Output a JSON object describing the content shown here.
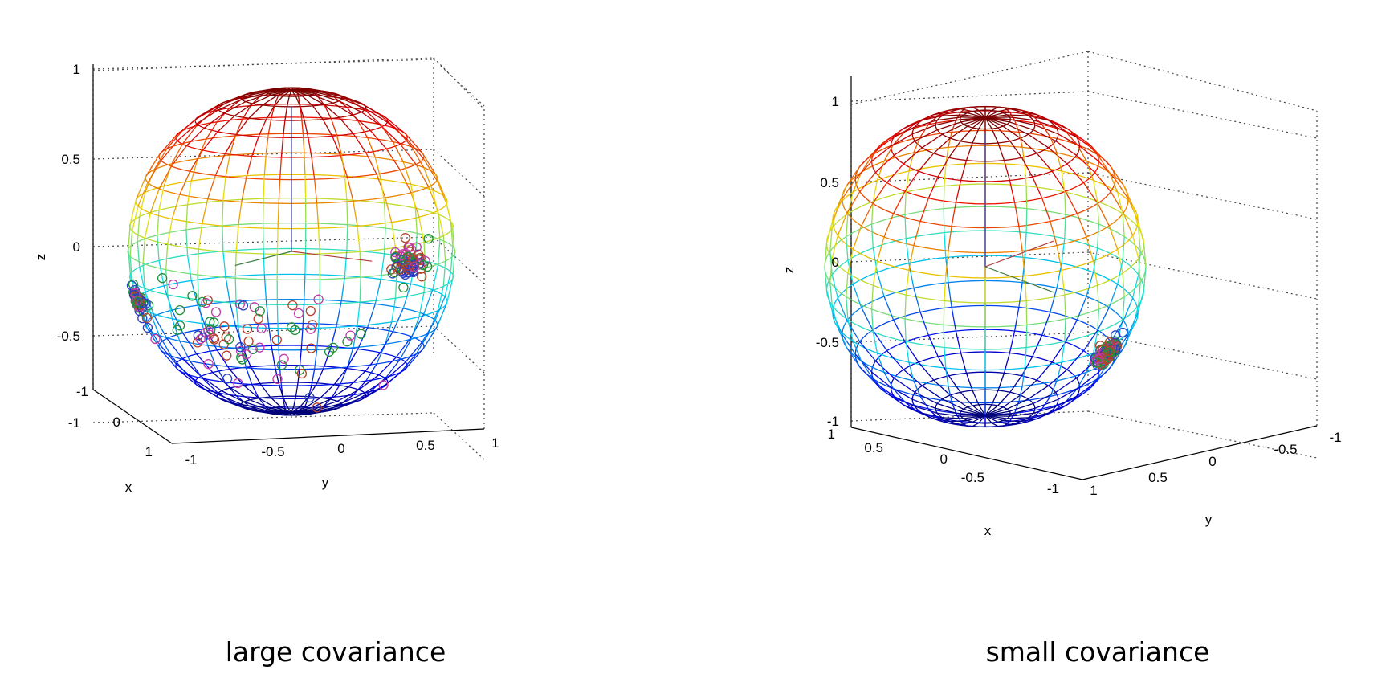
{
  "figure": {
    "captions": [
      "large covariance",
      "small covariance"
    ]
  },
  "chart_data": [
    {
      "type": "scatter",
      "title": "",
      "xlabel": "x",
      "ylabel": "y",
      "zlabel": "z",
      "xlim": [
        -1,
        1
      ],
      "ylim": [
        -1,
        1
      ],
      "zlim": [
        -1,
        1
      ],
      "x_ticks": [
        "-1",
        "0",
        "1"
      ],
      "y_ticks": [
        "-1",
        "-0.5",
        "0",
        "0.5",
        "1"
      ],
      "z_ticks": [
        "1",
        "0.5",
        "0",
        "-0.5",
        "-1"
      ],
      "grid": true,
      "surface": "unit sphere wireframe (jet colormap by z)",
      "marker": "circle",
      "marker_colors": [
        "#2a3fbf",
        "#1f8f3a",
        "#c03aa8",
        "#b5412a"
      ],
      "clusters": [
        {
          "center": [
            0.95,
            -0.85,
            -0.35
          ],
          "spread": 0.08,
          "count": 70
        },
        {
          "center": [
            0.15,
            0.95,
            0.05
          ],
          "spread": 0.08,
          "count": 70
        },
        {
          "center": [
            0.9,
            0.3,
            -0.45
          ],
          "spread": 0.35,
          "count": 70
        }
      ]
    },
    {
      "type": "scatter",
      "title": "",
      "xlabel": "x",
      "ylabel": "y",
      "zlabel": "z",
      "xlim": [
        -1,
        1
      ],
      "ylim": [
        -1,
        1
      ],
      "zlim": [
        -1,
        1
      ],
      "x_ticks": [
        "1",
        "0.5",
        "0",
        "-0.5",
        "-1"
      ],
      "y_ticks": [
        "1",
        "0.5",
        "0",
        "-0.5",
        "-1"
      ],
      "z_ticks": [
        "1",
        "0.5",
        "0",
        "-0.5",
        "-1"
      ],
      "grid": true,
      "surface": "unit sphere wireframe (jet colormap by z)",
      "marker": "circle",
      "marker_colors": [
        "#2a3fbf",
        "#1f8f3a",
        "#c03aa8",
        "#b5412a"
      ],
      "clusters": [
        {
          "center": [
            0.9,
            0.15,
            -0.35
          ],
          "spread": 0.06,
          "count": 110
        }
      ]
    }
  ]
}
